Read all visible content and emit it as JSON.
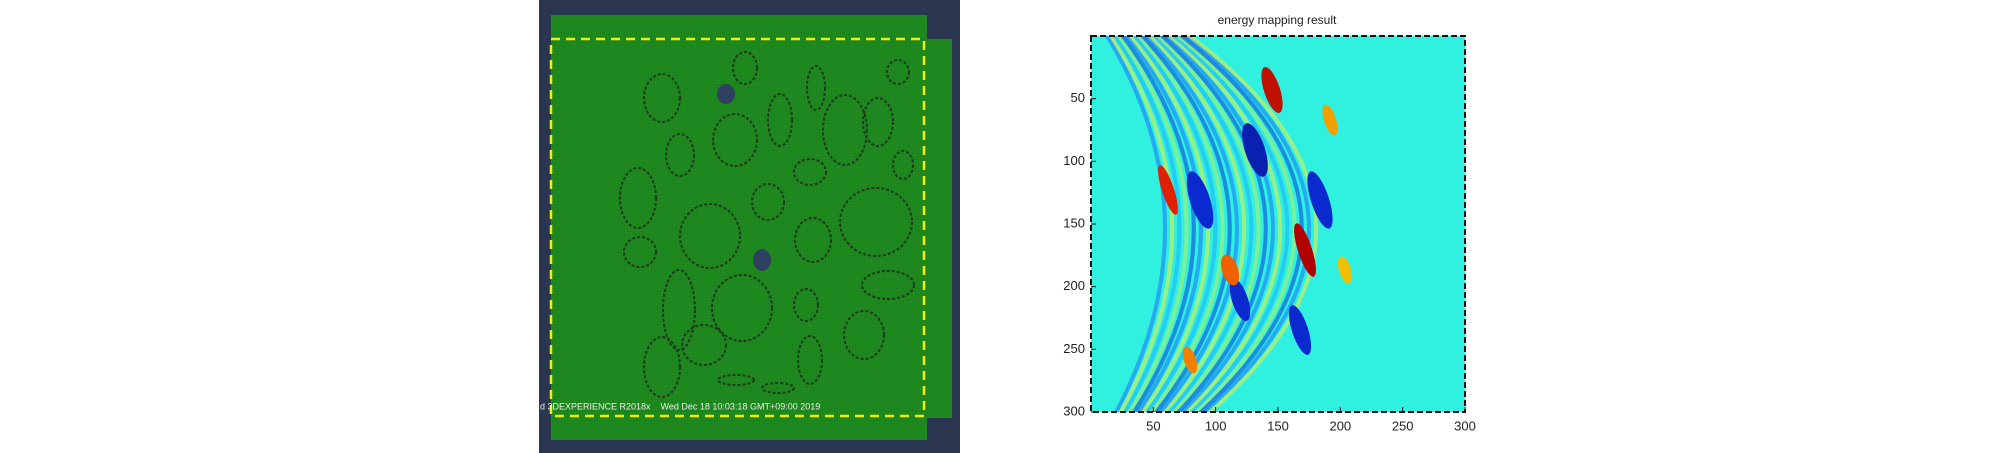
{
  "left_panel": {
    "status_text": "d 3DEXPERIENCE R2018x    Wed Dec 18 10:03:18 GMT+09:00 2019"
  },
  "chart_data": {
    "type": "heatmap",
    "title": "energy mapping result",
    "xlim": [
      0,
      300
    ],
    "xticks": [
      50,
      100,
      150,
      200,
      250,
      300
    ],
    "ylim": [
      0,
      300
    ],
    "yticks": [
      50,
      100,
      150,
      200,
      250,
      300
    ]
  }
}
